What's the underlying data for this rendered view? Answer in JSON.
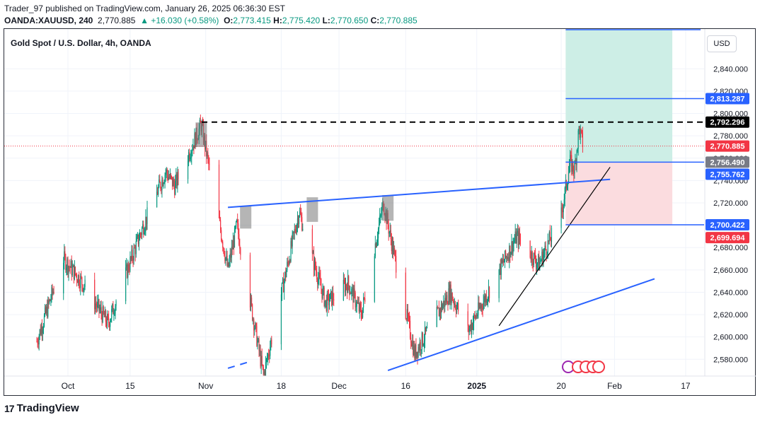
{
  "header": {
    "published": "Trader_97 published on TradingView.com, January 26, 2025 06:36:30 EST",
    "symbol": "OANDA:XAUUSD, 240",
    "price": "2,770.885",
    "change": "+16.030 (+0.58%)",
    "ohlc": {
      "o": "2,773.415",
      "h": "2,775.420",
      "l": "2,770.650",
      "c": "2,770.885"
    }
  },
  "chart_title": "Gold Spot / U.S. Dollar, 4h, OANDA",
  "currency_button": "USD",
  "footer": {
    "brand": "TradingView"
  },
  "colors": {
    "up": "#089981",
    "down": "#f23645",
    "trendline": "#2962ff",
    "target_zone": "#cdeee6",
    "stop_zone": "#fbdcdf"
  },
  "chart_data": {
    "type": "candlestick",
    "title": "Gold Spot / U.S. Dollar, 4h, OANDA",
    "ylim": [
      2565,
      2875
    ],
    "y_ticks": [
      2580,
      2600,
      2620,
      2640,
      2660,
      2680,
      2700,
      2720,
      2740,
      2760,
      2780,
      2800,
      2820,
      2840
    ],
    "y_tick_labels": [
      "2,580.000",
      "2,600.000",
      "2,620.000",
      "2,640.000",
      "2,660.000",
      "2,680.000",
      "2,700.000",
      "2,720.000",
      "2,740.000",
      "2,760.000",
      "2,780.000",
      "2,800.000",
      "2,820.000",
      "2,840.000"
    ],
    "x_tick_labels": [
      {
        "label": "Oct",
        "date": "2024-10-01"
      },
      {
        "label": "15",
        "date": "2024-10-15"
      },
      {
        "label": "Nov",
        "date": "2024-11-01"
      },
      {
        "label": "18",
        "date": "2024-11-18"
      },
      {
        "label": "Dec",
        "date": "2024-12-01"
      },
      {
        "label": "16",
        "date": "2024-12-16"
      },
      {
        "label": "2025",
        "date": "2025-01-01"
      },
      {
        "label": "20",
        "date": "2025-01-20"
      },
      {
        "label": "Feb",
        "date": "2025-02-01"
      },
      {
        "label": "17",
        "date": "2025-02-17"
      }
    ],
    "price_path": [
      {
        "date": "2024-09-24",
        "price": 2596
      },
      {
        "date": "2024-09-30",
        "price": 2670
      },
      {
        "date": "2024-10-04",
        "price": 2650
      },
      {
        "date": "2024-10-10",
        "price": 2612
      },
      {
        "date": "2024-10-18",
        "price": 2700
      },
      {
        "date": "2024-10-23",
        "price": 2748
      },
      {
        "date": "2024-10-25",
        "price": 2735
      },
      {
        "date": "2024-10-31",
        "price": 2790
      },
      {
        "date": "2024-11-06",
        "price": 2660
      },
      {
        "date": "2024-11-08",
        "price": 2700
      },
      {
        "date": "2024-11-14",
        "price": 2565
      },
      {
        "date": "2024-11-22",
        "price": 2712
      },
      {
        "date": "2024-11-28",
        "price": 2630
      },
      {
        "date": "2024-12-03",
        "price": 2648
      },
      {
        "date": "2024-12-06",
        "price": 2620
      },
      {
        "date": "2024-12-11",
        "price": 2720
      },
      {
        "date": "2024-12-18",
        "price": 2585
      },
      {
        "date": "2024-12-26",
        "price": 2640
      },
      {
        "date": "2024-12-30",
        "price": 2605
      },
      {
        "date": "2025-01-10",
        "price": 2690
      },
      {
        "date": "2025-01-15",
        "price": 2665
      },
      {
        "date": "2025-01-20",
        "price": 2710
      },
      {
        "date": "2025-01-22",
        "price": 2756
      },
      {
        "date": "2025-01-23",
        "price": 2750
      },
      {
        "date": "2025-01-24",
        "price": 2786
      },
      {
        "date": "2025-01-25",
        "price": 2771
      }
    ],
    "marked_highs": [
      {
        "date": "2024-10-31",
        "low": 2770,
        "high": 2792
      },
      {
        "date": "2024-11-10",
        "low": 2697,
        "high": 2717
      },
      {
        "date": "2024-11-25",
        "low": 2703,
        "high": 2725
      },
      {
        "date": "2024-12-12",
        "low": 2704,
        "high": 2727
      }
    ],
    "lines": [
      {
        "name": "neckline",
        "from": {
          "date": "2024-11-06",
          "price": 2716
        },
        "to": {
          "date": "2025-01-31",
          "price": 2741
        }
      },
      {
        "name": "support",
        "from": {
          "date": "2024-12-12",
          "price": 2570
        },
        "to": {
          "date": "2025-02-10",
          "price": 2652
        }
      },
      {
        "name": "support-left",
        "from": {
          "date": "2024-11-06",
          "price": 2572
        },
        "to": {
          "date": "2024-11-11",
          "price": 2578
        }
      },
      {
        "name": "steep-trend",
        "from": {
          "date": "2025-01-06",
          "price": 2610
        },
        "to": {
          "date": "2025-01-31",
          "price": 2752
        }
      },
      {
        "name": "resistance",
        "price": 2792.296
      }
    ],
    "position": {
      "entry": 2756.49,
      "target": 2813.287,
      "stop": 2700.422,
      "top": 2875,
      "start_date": "2025-01-21",
      "end_date": "2025-02-14"
    },
    "price_labels": [
      {
        "text": "2,813.287",
        "price": 2813.287,
        "style": "blue"
      },
      {
        "text": "2,792.296",
        "price": 2792.296,
        "style": "black"
      },
      {
        "text": "2,770.885",
        "price": 2770.885,
        "style": "red"
      },
      {
        "text": "2,756.490",
        "price": 2756.49,
        "style": "grey"
      },
      {
        "text": "2,755.762",
        "price": 2755.762,
        "style": "blue"
      },
      {
        "text": "2,700.422",
        "price": 2700.422,
        "style": "blue"
      },
      {
        "text": "2,699.694",
        "price": 2699.694,
        "style": "red"
      }
    ]
  }
}
